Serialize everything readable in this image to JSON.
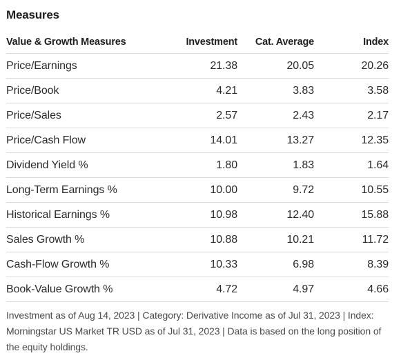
{
  "section_title": "Measures",
  "table": {
    "headers": {
      "label": "Value & Growth Measures",
      "investment": "Investment",
      "cat_average": "Cat. Average",
      "index": "Index"
    },
    "rows": [
      {
        "label": "Price/Earnings",
        "investment": "21.38",
        "cat_average": "20.05",
        "index": "20.26"
      },
      {
        "label": "Price/Book",
        "investment": "4.21",
        "cat_average": "3.83",
        "index": "3.58"
      },
      {
        "label": "Price/Sales",
        "investment": "2.57",
        "cat_average": "2.43",
        "index": "2.17"
      },
      {
        "label": "Price/Cash Flow",
        "investment": "14.01",
        "cat_average": "13.27",
        "index": "12.35"
      },
      {
        "label": "Dividend Yield %",
        "investment": "1.80",
        "cat_average": "1.83",
        "index": "1.64"
      },
      {
        "label": "Long-Term Earnings %",
        "investment": "10.00",
        "cat_average": "9.72",
        "index": "10.55"
      },
      {
        "label": "Historical Earnings %",
        "investment": "10.98",
        "cat_average": "12.40",
        "index": "15.88"
      },
      {
        "label": "Sales Growth %",
        "investment": "10.88",
        "cat_average": "10.21",
        "index": "11.72"
      },
      {
        "label": "Cash-Flow Growth %",
        "investment": "10.33",
        "cat_average": "6.98",
        "index": "8.39"
      },
      {
        "label": "Book-Value Growth %",
        "investment": "4.72",
        "cat_average": "4.97",
        "index": "4.66"
      }
    ]
  },
  "footnote": "Investment as of Aug 14, 2023 | Category: Derivative Income as of Jul 31, 2023 | Index: Morningstar US Market TR USD as of Jul 31, 2023 | Data is based on the long position of the equity holdings."
}
